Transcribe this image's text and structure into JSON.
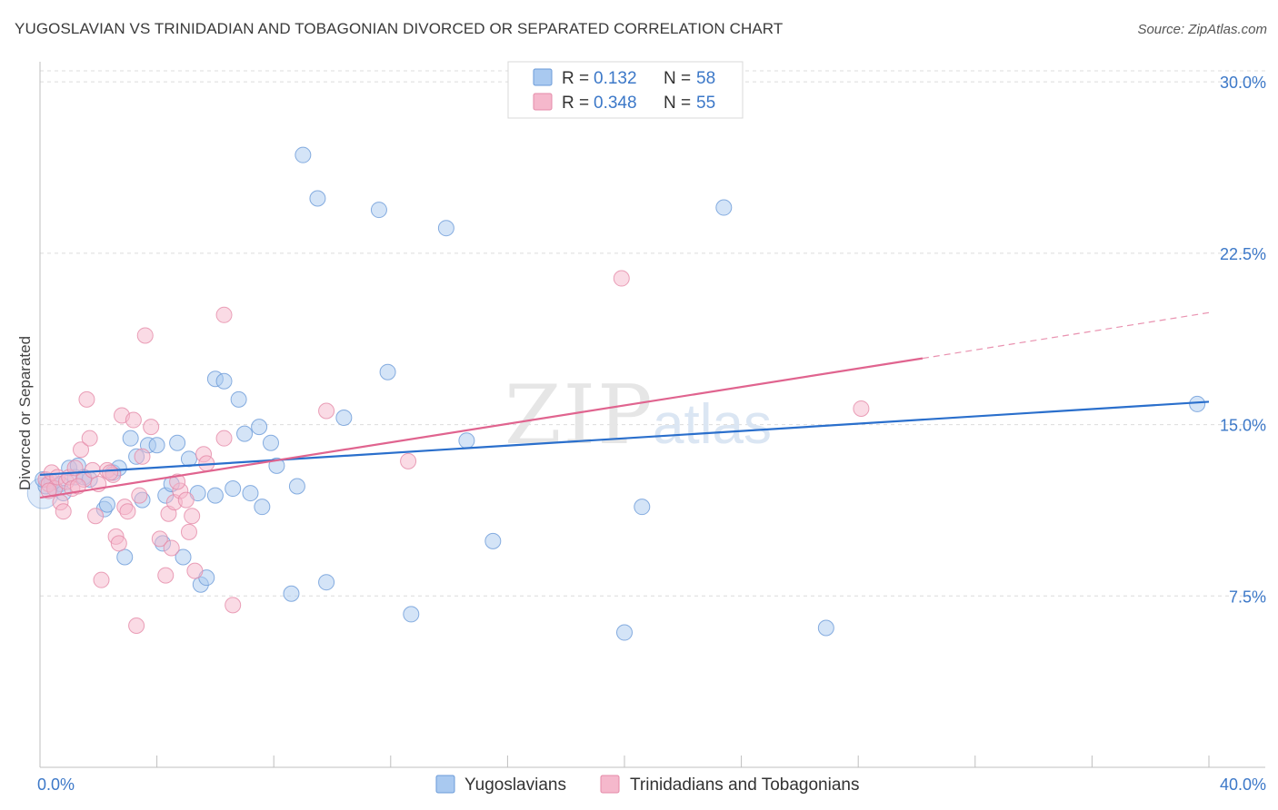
{
  "header": {
    "title": "YUGOSLAVIAN VS TRINIDADIAN AND TOBAGONIAN DIVORCED OR SEPARATED CORRELATION CHART",
    "source": "Source: ZipAtlas.com"
  },
  "watermark": {
    "zip": "ZIP",
    "atlas": "atlas"
  },
  "colors": {
    "blue_fill": "#a9c9f0",
    "blue_stroke": "#6a9ad8",
    "blue_line": "#2a6fcc",
    "pink_fill": "#f5b8cc",
    "pink_stroke": "#e58aa8",
    "pink_line": "#e0648f",
    "tick_text": "#3c78c8",
    "grid": "#dcdcdc"
  },
  "stats_legend": {
    "rows": [
      {
        "r_label": "R =",
        "r_value": "0.132",
        "n_label": "N =",
        "n_value": "58",
        "series": "blue"
      },
      {
        "r_label": "R =",
        "r_value": "0.348",
        "n_label": "N =",
        "n_value": "55",
        "series": "pink"
      }
    ]
  },
  "bottom_legend": [
    {
      "label": "Yugoslavians",
      "series": "blue"
    },
    {
      "label": "Trinidadians and Tobagonians",
      "series": "pink"
    }
  ],
  "chart_data": {
    "type": "scatter",
    "ylabel": "Divorced or Separated",
    "xlabel": "",
    "xlim": [
      0,
      40
    ],
    "ylim": [
      0,
      31
    ],
    "x_tick_labels": [
      {
        "value": 0,
        "label": "0.0%"
      },
      {
        "value": 40,
        "label": "40.0%"
      }
    ],
    "y_tick_labels": [
      {
        "value": 7.5,
        "label": "7.5%"
      },
      {
        "value": 15,
        "label": "15.0%"
      },
      {
        "value": 22.5,
        "label": "22.5%"
      },
      {
        "value": 30,
        "label": "30.0%"
      }
    ],
    "grid": "horizontal dashed",
    "legend_position": "top-center",
    "series": [
      {
        "name": "Yugoslavians",
        "color": "blue",
        "trend": {
          "x": [
            0,
            40
          ],
          "y": [
            12.8,
            16.0
          ]
        },
        "points": [
          [
            0.2,
            12.3
          ],
          [
            0.4,
            12.5
          ],
          [
            0.5,
            12.2
          ],
          [
            0.7,
            12.4
          ],
          [
            0.8,
            12.0
          ],
          [
            1.0,
            13.1
          ],
          [
            1.2,
            12.7
          ],
          [
            1.3,
            13.2
          ],
          [
            1.5,
            12.7
          ],
          [
            1.7,
            12.6
          ],
          [
            2.2,
            11.3
          ],
          [
            2.3,
            11.5
          ],
          [
            2.5,
            12.9
          ],
          [
            2.7,
            13.1
          ],
          [
            2.9,
            9.2
          ],
          [
            3.1,
            14.4
          ],
          [
            3.3,
            13.6
          ],
          [
            3.5,
            11.7
          ],
          [
            3.7,
            14.1
          ],
          [
            4.0,
            14.1
          ],
          [
            4.2,
            9.8
          ],
          [
            4.3,
            11.9
          ],
          [
            4.5,
            12.4
          ],
          [
            4.7,
            14.2
          ],
          [
            4.9,
            9.2
          ],
          [
            5.1,
            13.5
          ],
          [
            5.4,
            12.0
          ],
          [
            5.5,
            8.0
          ],
          [
            5.7,
            8.3
          ],
          [
            6.0,
            11.9
          ],
          [
            6.0,
            17.0
          ],
          [
            6.3,
            16.9
          ],
          [
            6.6,
            12.2
          ],
          [
            6.8,
            16.1
          ],
          [
            7.0,
            14.6
          ],
          [
            7.2,
            12.0
          ],
          [
            7.5,
            14.9
          ],
          [
            7.6,
            11.4
          ],
          [
            7.9,
            14.2
          ],
          [
            8.1,
            13.2
          ],
          [
            8.6,
            7.6
          ],
          [
            8.8,
            12.3
          ],
          [
            9.0,
            26.8
          ],
          [
            9.5,
            24.9
          ],
          [
            9.8,
            8.1
          ],
          [
            10.4,
            15.3
          ],
          [
            11.6,
            24.4
          ],
          [
            11.9,
            17.3
          ],
          [
            12.7,
            6.7
          ],
          [
            13.9,
            23.6
          ],
          [
            14.6,
            14.3
          ],
          [
            15.5,
            9.9
          ],
          [
            20.0,
            5.9
          ],
          [
            20.6,
            11.4
          ],
          [
            23.4,
            24.5
          ],
          [
            26.9,
            6.1
          ],
          [
            39.6,
            15.9
          ],
          [
            0.1,
            12.6
          ]
        ]
      },
      {
        "name": "Trinidadians and Tobagonians",
        "color": "pink",
        "trend": {
          "x": [
            0,
            30.2
          ],
          "y": [
            11.8,
            17.9
          ]
        },
        "trend_dashed": {
          "x": [
            30.2,
            40
          ],
          "y": [
            17.9,
            19.9
          ]
        },
        "points": [
          [
            0.2,
            12.6
          ],
          [
            0.3,
            12.4
          ],
          [
            0.4,
            12.9
          ],
          [
            0.5,
            12.2
          ],
          [
            0.6,
            12.7
          ],
          [
            0.7,
            11.6
          ],
          [
            0.8,
            11.2
          ],
          [
            0.9,
            12.5
          ],
          [
            1.0,
            12.7
          ],
          [
            1.1,
            12.2
          ],
          [
            1.2,
            13.1
          ],
          [
            1.4,
            13.9
          ],
          [
            1.5,
            12.6
          ],
          [
            1.6,
            16.1
          ],
          [
            1.7,
            14.4
          ],
          [
            1.8,
            13.0
          ],
          [
            1.9,
            11.0
          ],
          [
            2.0,
            12.4
          ],
          [
            2.1,
            8.2
          ],
          [
            2.3,
            13.0
          ],
          [
            2.5,
            12.8
          ],
          [
            2.6,
            10.1
          ],
          [
            2.7,
            9.8
          ],
          [
            2.8,
            15.4
          ],
          [
            2.9,
            11.4
          ],
          [
            3.0,
            11.2
          ],
          [
            3.2,
            15.2
          ],
          [
            3.3,
            6.2
          ],
          [
            3.4,
            11.9
          ],
          [
            3.5,
            13.6
          ],
          [
            3.6,
            18.9
          ],
          [
            3.8,
            14.9
          ],
          [
            4.1,
            10.0
          ],
          [
            4.3,
            8.4
          ],
          [
            4.4,
            11.1
          ],
          [
            4.5,
            9.6
          ],
          [
            4.6,
            11.6
          ],
          [
            4.8,
            12.1
          ],
          [
            5.0,
            11.7
          ],
          [
            5.1,
            10.3
          ],
          [
            5.2,
            11.0
          ],
          [
            5.3,
            8.6
          ],
          [
            5.6,
            13.7
          ],
          [
            5.7,
            13.3
          ],
          [
            6.3,
            14.4
          ],
          [
            6.3,
            19.8
          ],
          [
            6.6,
            7.1
          ],
          [
            9.8,
            15.6
          ],
          [
            12.6,
            13.4
          ],
          [
            19.9,
            21.4
          ],
          [
            28.1,
            15.7
          ],
          [
            0.3,
            12.1
          ],
          [
            1.3,
            12.3
          ],
          [
            2.4,
            12.9
          ],
          [
            4.7,
            12.5
          ]
        ]
      }
    ]
  }
}
